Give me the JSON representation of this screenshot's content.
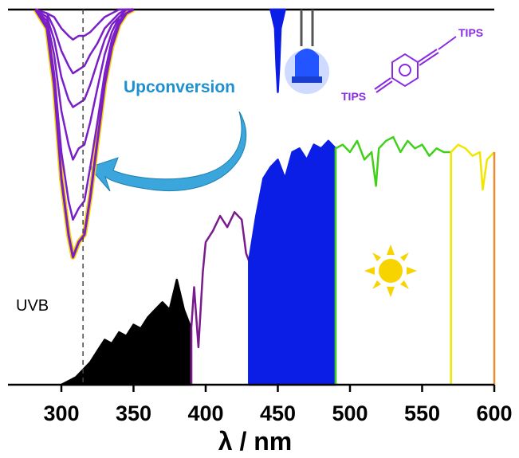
{
  "chart_data": {
    "type": "line",
    "xlabel": "λ / nm",
    "xlim": [
      263,
      600
    ],
    "xticks": [
      300,
      350,
      400,
      450,
      500,
      550,
      600
    ],
    "ylim": [
      0,
      1
    ],
    "y2lim": [
      1,
      0
    ],
    "annotations": [
      "Upconversion",
      "UVB",
      "TIPS",
      "TIPS"
    ],
    "series": [
      {
        "color": "#000000",
        "fill": true,
        "x": [
          300,
          305,
          310,
          315,
          320,
          325,
          330,
          335,
          340,
          345,
          350,
          355,
          360,
          365,
          370,
          375,
          380,
          385,
          390
        ],
        "values": [
          0,
          0.01,
          0.02,
          0.04,
          0.06,
          0.09,
          0.12,
          0.11,
          0.14,
          0.13,
          0.16,
          0.15,
          0.18,
          0.2,
          0.22,
          0.2,
          0.28,
          0.2,
          0.15
        ]
      },
      {
        "color": "#7b1a8c",
        "fill": false,
        "x": [
          390,
          390,
          392,
          395,
          398,
          400,
          405,
          410,
          415,
          420,
          425,
          428,
          430
        ],
        "values": [
          0,
          0.15,
          0.26,
          0.1,
          0.3,
          0.38,
          0.41,
          0.45,
          0.42,
          0.46,
          0.44,
          0.35,
          0.33
        ]
      },
      {
        "color": "#0a1ee6",
        "fill": true,
        "x": [
          430,
          435,
          440,
          445,
          450,
          455,
          460,
          465,
          470,
          475,
          480,
          485,
          490
        ],
        "values": [
          0.33,
          0.45,
          0.55,
          0.58,
          0.6,
          0.55,
          0.62,
          0.63,
          0.6,
          0.64,
          0.63,
          0.65,
          0.63
        ]
      },
      {
        "color": "#3fd11a",
        "fill": false,
        "x": [
          490,
          490,
          495,
          500,
          505,
          510,
          515,
          518,
          520,
          525,
          530,
          535,
          540,
          545,
          550,
          555,
          560,
          565,
          570
        ],
        "values": [
          0,
          0.63,
          0.64,
          0.62,
          0.65,
          0.6,
          0.62,
          0.53,
          0.63,
          0.65,
          0.66,
          0.62,
          0.65,
          0.63,
          0.64,
          0.61,
          0.63,
          0.62,
          0.62
        ]
      },
      {
        "color": "#f2e600",
        "fill": false,
        "x": [
          570,
          570,
          575,
          580,
          585,
          590,
          592,
          595,
          600
        ],
        "values": [
          0,
          0.62,
          0.64,
          0.63,
          0.61,
          0.62,
          0.52,
          0.6,
          0.62
        ]
      },
      {
        "color": "#f08a30",
        "fill": false,
        "x": [
          600,
          600
        ],
        "values": [
          0,
          0.62
        ]
      },
      {
        "color": "#0a1ee6",
        "fill": true,
        "axis": "y2",
        "x": [
          445,
          448,
          449,
          450,
          451,
          452,
          455
        ],
        "values": [
          0,
          0.05,
          0.15,
          0.22,
          0.15,
          0.05,
          0
        ]
      },
      {
        "color": "#7a1fc8",
        "axis": "y2",
        "outline": "#f5d000",
        "x": [
          282,
          290,
          295,
          300,
          305,
          308,
          312,
          316,
          320,
          325,
          330,
          335,
          340,
          345,
          350
        ],
        "values": [
          0,
          0.05,
          0.2,
          0.45,
          0.6,
          0.66,
          0.62,
          0.6,
          0.5,
          0.35,
          0.2,
          0.1,
          0.04,
          0.01,
          0
        ]
      },
      {
        "color": "#7a1fc8",
        "axis": "y2",
        "x": [
          282,
          290,
          295,
          300,
          305,
          308,
          312,
          316,
          320,
          325,
          330,
          335,
          340,
          345,
          350
        ],
        "values": [
          0,
          0.04,
          0.17,
          0.38,
          0.51,
          0.56,
          0.53,
          0.51,
          0.42,
          0.3,
          0.17,
          0.08,
          0.03,
          0.01,
          0
        ]
      },
      {
        "color": "#7a1fc8",
        "axis": "y2",
        "x": [
          282,
          290,
          295,
          300,
          305,
          308,
          312,
          316,
          320,
          325,
          330,
          335,
          340,
          345,
          350
        ],
        "values": [
          0,
          0.03,
          0.12,
          0.27,
          0.36,
          0.4,
          0.37,
          0.36,
          0.3,
          0.21,
          0.12,
          0.06,
          0.02,
          0.01,
          0
        ]
      },
      {
        "color": "#7a1fc8",
        "axis": "y2",
        "x": [
          282,
          290,
          295,
          300,
          305,
          308,
          312,
          316,
          320,
          325,
          330,
          335,
          340,
          345,
          350
        ],
        "values": [
          0,
          0.02,
          0.08,
          0.18,
          0.24,
          0.26,
          0.25,
          0.24,
          0.2,
          0.14,
          0.08,
          0.04,
          0.02,
          0,
          0
        ]
      },
      {
        "color": "#7a1fc8",
        "axis": "y2",
        "x": [
          282,
          290,
          295,
          300,
          305,
          308,
          312,
          316,
          320,
          325,
          330,
          335,
          340,
          345,
          350
        ],
        "values": [
          0,
          0.01,
          0.05,
          0.11,
          0.15,
          0.17,
          0.16,
          0.15,
          0.12,
          0.09,
          0.05,
          0.03,
          0.01,
          0,
          0
        ]
      },
      {
        "color": "#7a1fc8",
        "axis": "y2",
        "x": [
          282,
          290,
          295,
          300,
          305,
          308,
          312,
          316,
          320,
          325,
          330,
          335,
          340,
          345,
          350
        ],
        "values": [
          0,
          0.01,
          0.02,
          0.05,
          0.07,
          0.08,
          0.07,
          0.07,
          0.06,
          0.04,
          0.02,
          0.01,
          0,
          0,
          0
        ]
      }
    ],
    "uvb_line": 315
  }
}
